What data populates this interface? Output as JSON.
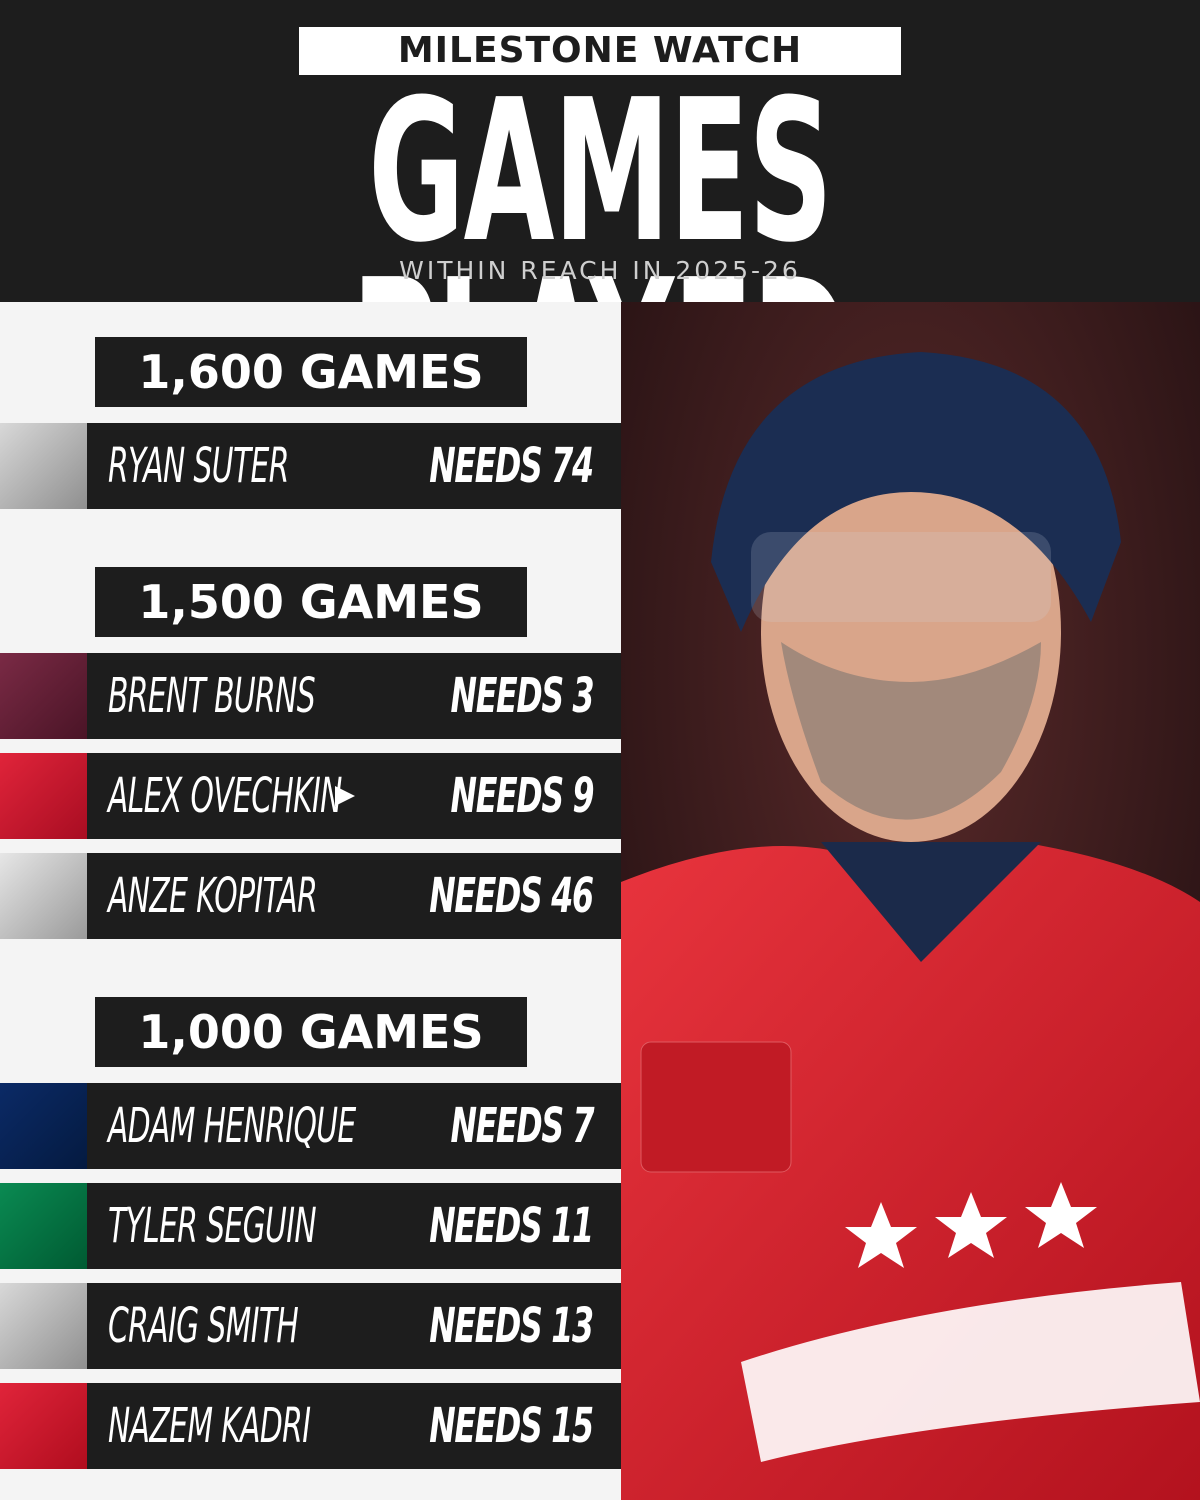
{
  "header": {
    "label": "MILESTONE WATCH",
    "title": "GAMES PLAYED",
    "subtitle": "WITHIN REACH IN 2025-26"
  },
  "sections": [
    {
      "title": "1,600 GAMES",
      "players": [
        {
          "name": "RYAN SUTER",
          "needs": "NEEDS 74"
        }
      ]
    },
    {
      "title": "1,500 GAMES",
      "players": [
        {
          "name": "BRENT BURNS",
          "needs": "NEEDS 3"
        },
        {
          "name": "ALEX OVECHKIN",
          "needs": "NEEDS 9"
        },
        {
          "name": "ANZE KOPITAR",
          "needs": "NEEDS 46"
        }
      ]
    },
    {
      "title": "1,000 GAMES",
      "players": [
        {
          "name": "ADAM HENRIQUE",
          "needs": "NEEDS 7"
        },
        {
          "name": "TYLER SEGUIN",
          "needs": "NEEDS 11"
        },
        {
          "name": "CRAIG SMITH",
          "needs": "NEEDS 13"
        },
        {
          "name": "NAZEM KADRI",
          "needs": "NEEDS 15"
        }
      ]
    }
  ]
}
